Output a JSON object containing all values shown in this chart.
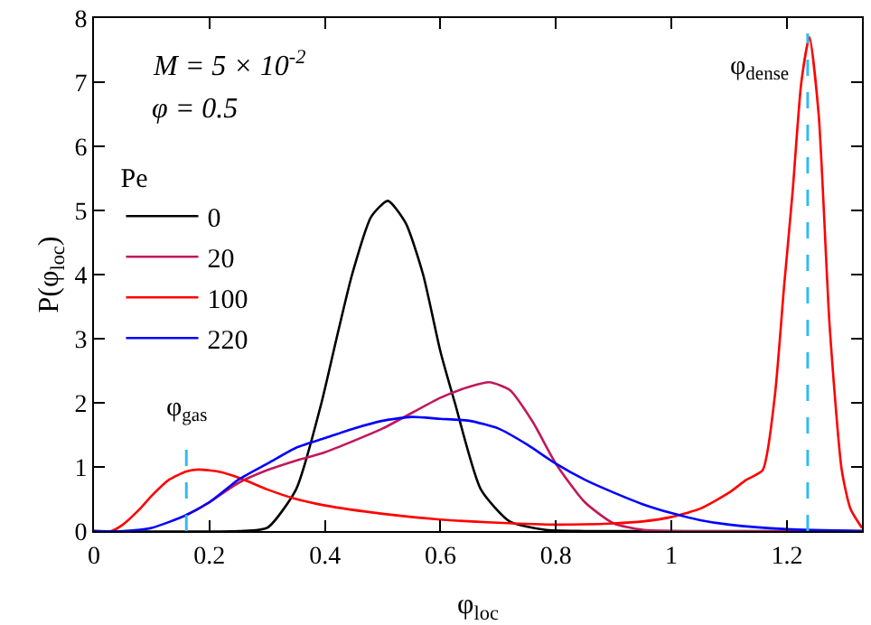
{
  "chart_data": {
    "type": "line",
    "xlabel": "φ$_{loc}$",
    "ylabel": "P(φ$_{loc}$)",
    "legend_title": "Pe",
    "legend": "left",
    "grid": false,
    "marker": "none",
    "line_style": "solid",
    "xlim": [
      0,
      1.33
    ],
    "xticks": [
      0,
      0.2,
      0.4,
      0.6,
      0.8,
      1,
      1.2
    ],
    "ylim": [
      0,
      8
    ],
    "yticks": [
      0,
      1,
      2,
      3,
      4,
      5,
      6,
      7,
      8
    ],
    "annotations": [
      "M = 5 × 10$^{-2}$",
      "φ = 0.5"
    ],
    "ref_lines": [
      {
        "axis": "x",
        "value": 0.16,
        "label": "φ$_{gas}$",
        "color": "#33bbee",
        "line_style": "dashed"
      },
      {
        "axis": "x",
        "value": 1.236,
        "label": "φ$_{dense}$",
        "color": "#33bbee",
        "line_style": "dashed"
      }
    ],
    "series": [
      {
        "name": "0",
        "color": "#000000",
        "x": [
          0,
          0.25,
          0.3,
          0.35,
          0.394,
          0.42,
          0.447,
          0.48,
          0.509,
          0.54,
          0.57,
          0.6,
          0.625,
          0.67,
          0.72,
          0.78,
          0.85,
          1.33
        ],
        "values": [
          0,
          0,
          0.05,
          0.65,
          2,
          3,
          4,
          4.9,
          5.15,
          4.8,
          4,
          2.8,
          2,
          0.65,
          0.15,
          0.02,
          0,
          0
        ]
      },
      {
        "name": "20",
        "color": "#c0185a",
        "x": [
          0.16,
          0.2,
          0.25,
          0.3,
          0.35,
          0.4,
          0.5,
          0.6,
          0.65,
          0.685,
          0.72,
          0.76,
          0.8,
          0.85,
          0.9,
          0.95,
          1.0,
          1.33
        ],
        "values": [
          0.25,
          0.45,
          0.75,
          0.95,
          1.1,
          1.23,
          1.6,
          2.08,
          2.25,
          2.32,
          2.2,
          1.7,
          1.05,
          0.45,
          0.12,
          0.02,
          0,
          0
        ]
      },
      {
        "name": "100",
        "color": "#ff0000",
        "x": [
          0,
          0.03,
          0.05,
          0.08,
          0.1,
          0.13,
          0.16,
          0.18,
          0.22,
          0.26,
          0.3,
          0.35,
          0.4,
          0.5,
          0.6,
          0.7,
          0.8,
          0.9,
          0.95,
          1.0,
          1.05,
          1.1,
          1.13,
          1.158,
          1.179,
          1.195,
          1.21,
          1.225,
          1.239,
          1.255,
          1.274,
          1.295,
          1.31,
          1.33
        ],
        "values": [
          0,
          0,
          0.1,
          0.35,
          0.55,
          0.8,
          0.93,
          0.96,
          0.92,
          0.8,
          0.65,
          0.5,
          0.4,
          0.27,
          0.18,
          0.13,
          0.1,
          0.12,
          0.15,
          0.22,
          0.35,
          0.6,
          0.8,
          0.95,
          2.1,
          3.8,
          5.3,
          7,
          7.7,
          6.5,
          3.2,
          0.95,
          0.35,
          0.05
        ]
      },
      {
        "name": "220",
        "color": "#0000ff",
        "x": [
          0,
          0.05,
          0.1,
          0.16,
          0.2,
          0.25,
          0.3,
          0.35,
          0.4,
          0.45,
          0.5,
          0.55,
          0.6,
          0.65,
          0.7,
          0.75,
          0.8,
          0.85,
          0.9,
          0.95,
          1.0,
          1.05,
          1.1,
          1.2,
          1.33
        ],
        "values": [
          0,
          0,
          0.05,
          0.25,
          0.45,
          0.8,
          1.05,
          1.3,
          1.45,
          1.6,
          1.72,
          1.78,
          1.75,
          1.72,
          1.6,
          1.35,
          1.05,
          0.8,
          0.6,
          0.42,
          0.28,
          0.17,
          0.1,
          0.03,
          0
        ]
      }
    ]
  }
}
